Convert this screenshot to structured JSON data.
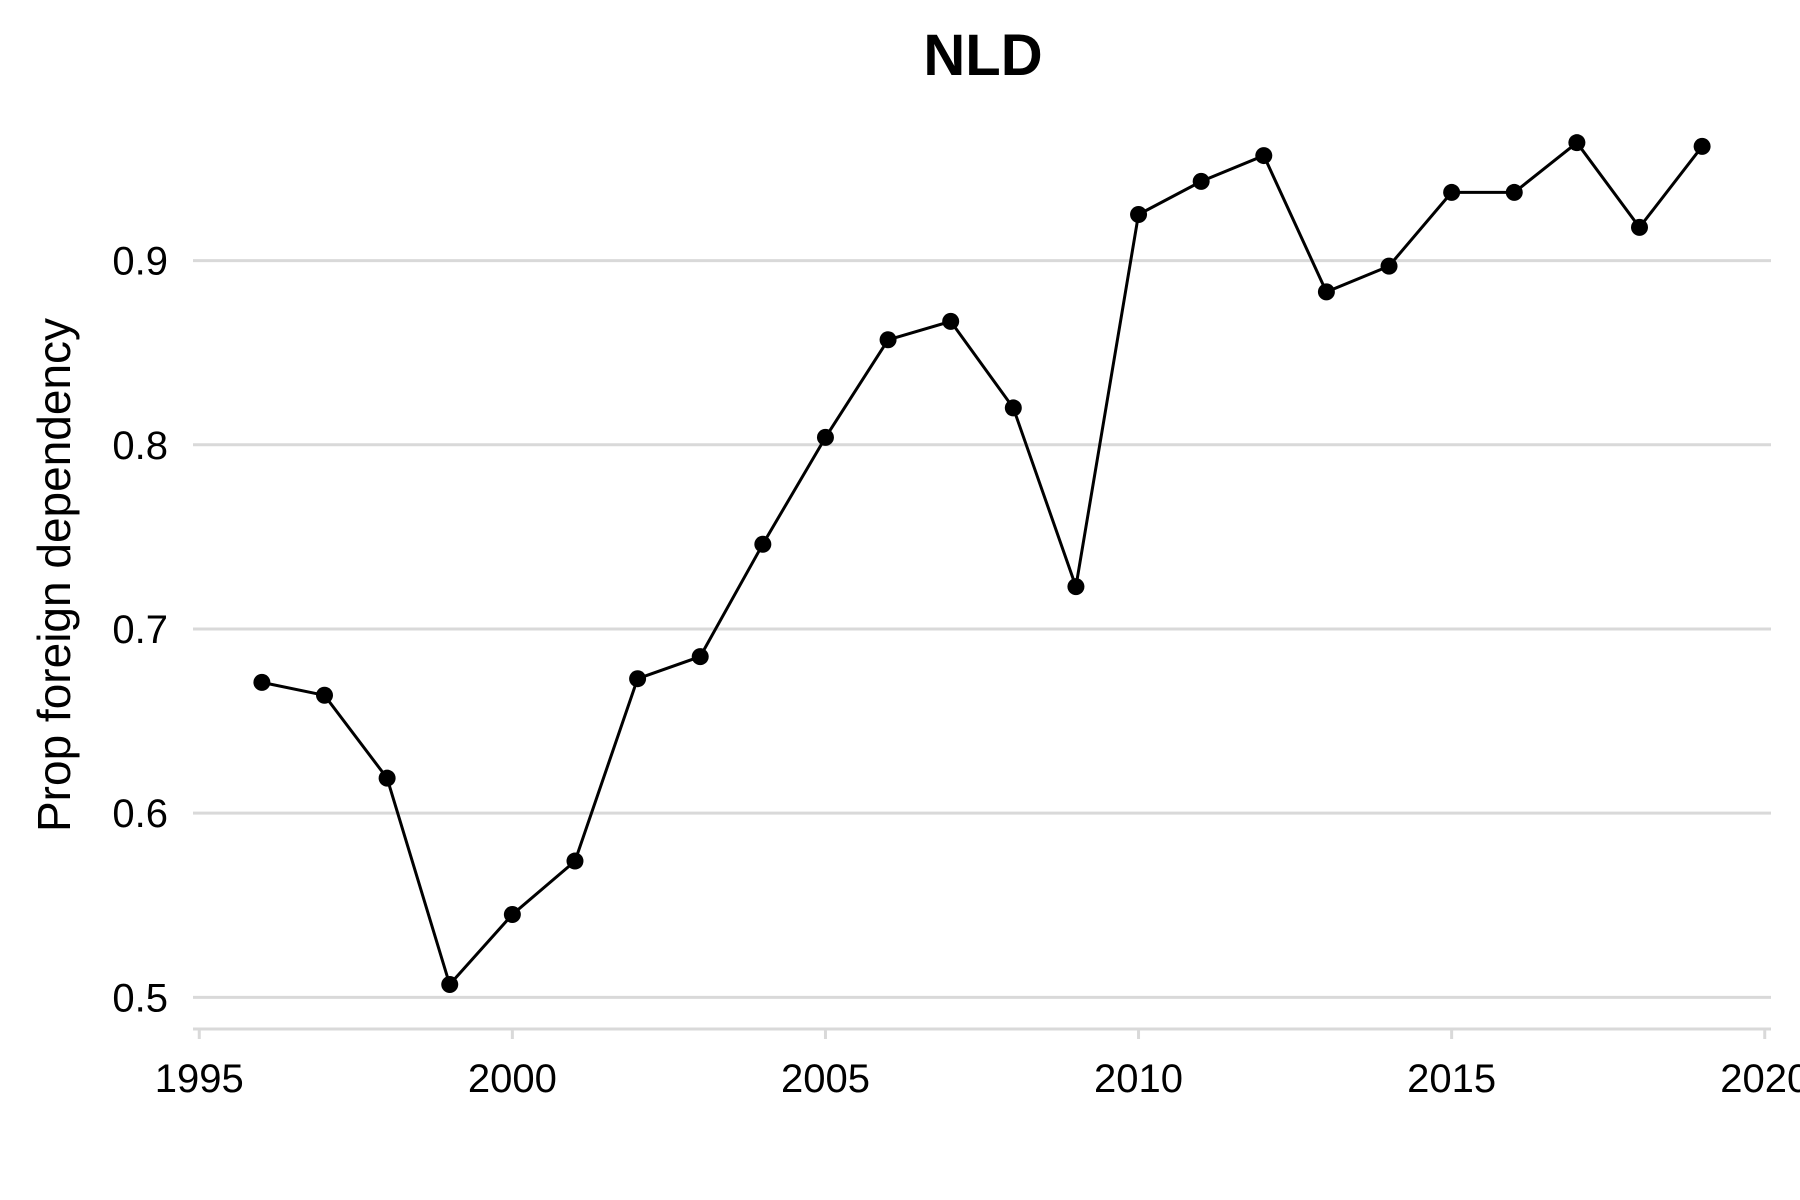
{
  "chart_data": {
    "type": "line",
    "title": "NLD",
    "xlabel": "",
    "ylabel": "Prop foreign dependency",
    "xlim": [
      1994.9,
      2020.1
    ],
    "ylim": [
      0.485,
      0.985
    ],
    "x_ticks": [
      1995,
      2000,
      2005,
      2010,
      2015,
      2020
    ],
    "y_ticks": [
      0.5,
      0.6,
      0.7,
      0.8,
      0.9
    ],
    "y_tick_labels": [
      "0.5",
      "0.6",
      "0.7",
      "0.8",
      "0.9"
    ],
    "grid": "horizontal",
    "series": [
      {
        "x": [
          1996,
          1997,
          1998,
          1999,
          2000,
          2001,
          2002,
          2003,
          2004,
          2005,
          2006,
          2007,
          2008,
          2009,
          2010,
          2011,
          2012,
          2013,
          2014,
          2015,
          2016,
          2017,
          2018,
          2019
        ],
        "values": [
          0.671,
          0.664,
          0.619,
          0.507,
          0.545,
          0.574,
          0.673,
          0.685,
          0.746,
          0.804,
          0.857,
          0.867,
          0.82,
          0.723,
          0.925,
          0.943,
          0.957,
          0.883,
          0.897,
          0.937,
          0.937,
          0.964,
          0.918,
          0.962
        ]
      }
    ]
  }
}
